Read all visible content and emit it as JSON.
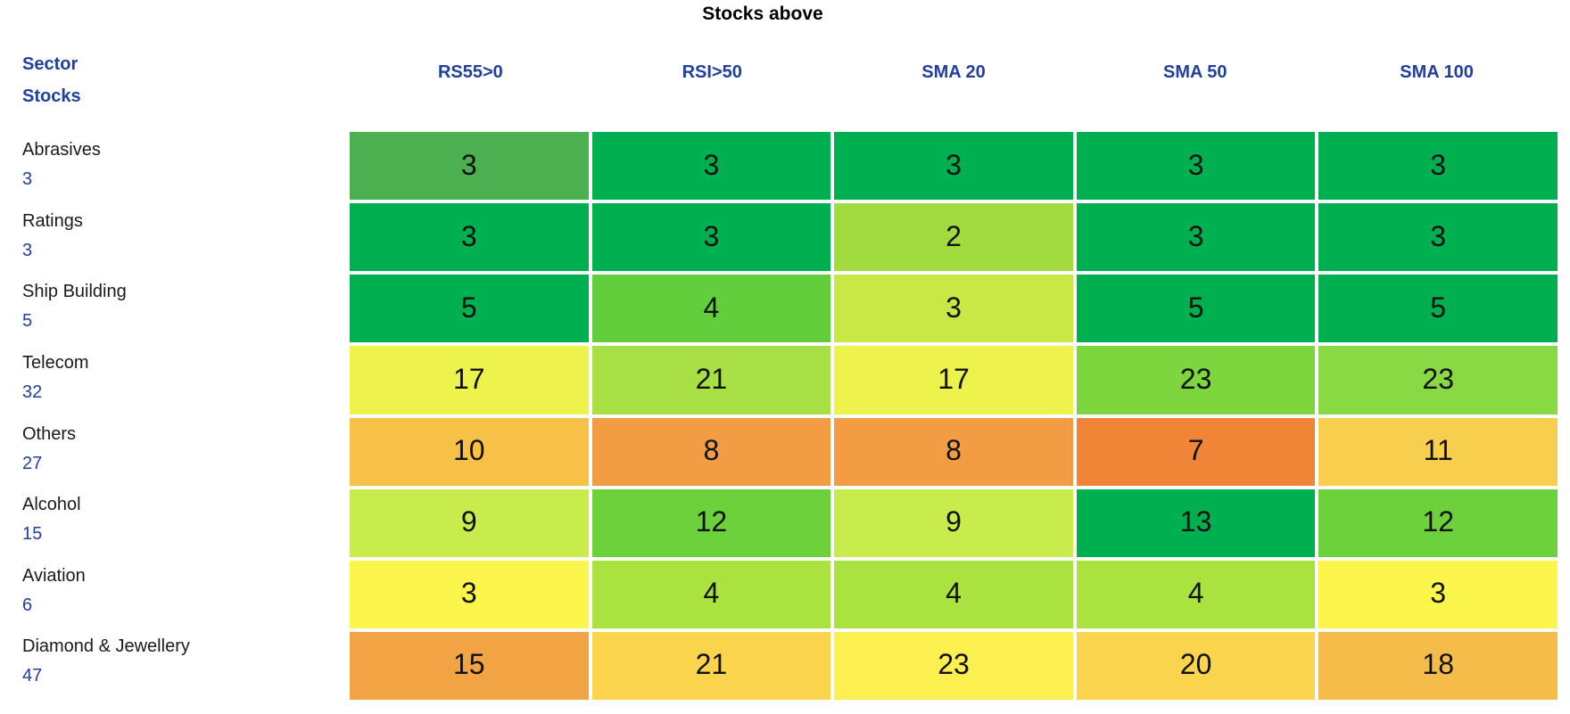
{
  "title": "Stocks above",
  "corner": {
    "line1": "Sector",
    "line2": "Stocks"
  },
  "columns": [
    "RS55>0",
    "RSI>50",
    "SMA 20",
    "SMA 50",
    "SMA 100"
  ],
  "rows": [
    {
      "sector": "Abrasives",
      "count": "3",
      "cells": [
        {
          "value": "3",
          "color": "#4CAF50"
        },
        {
          "value": "3",
          "color": "#00B050"
        },
        {
          "value": "3",
          "color": "#00B050"
        },
        {
          "value": "3",
          "color": "#00B050"
        },
        {
          "value": "3",
          "color": "#00B050"
        }
      ]
    },
    {
      "sector": "Ratings",
      "count": "3",
      "cells": [
        {
          "value": "3",
          "color": "#00B050"
        },
        {
          "value": "3",
          "color": "#00B050"
        },
        {
          "value": "2",
          "color": "#A2DB40"
        },
        {
          "value": "3",
          "color": "#00B050"
        },
        {
          "value": "3",
          "color": "#00B050"
        }
      ]
    },
    {
      "sector": "Ship Building",
      "count": "5",
      "cells": [
        {
          "value": "5",
          "color": "#00B050"
        },
        {
          "value": "4",
          "color": "#62CE3B"
        },
        {
          "value": "3",
          "color": "#C9E846"
        },
        {
          "value": "5",
          "color": "#00B050"
        },
        {
          "value": "5",
          "color": "#00B050"
        }
      ]
    },
    {
      "sector": "Telecom",
      "count": "32",
      "cells": [
        {
          "value": "17",
          "color": "#EEF24D"
        },
        {
          "value": "21",
          "color": "#A8DF45"
        },
        {
          "value": "17",
          "color": "#EEF24D"
        },
        {
          "value": "23",
          "color": "#7ED63E"
        },
        {
          "value": "23",
          "color": "#89D945"
        }
      ]
    },
    {
      "sector": "Others",
      "count": "27",
      "cells": [
        {
          "value": "10",
          "color": "#F6C146"
        },
        {
          "value": "8",
          "color": "#F29C44"
        },
        {
          "value": "8",
          "color": "#F29C44"
        },
        {
          "value": "7",
          "color": "#F08437"
        },
        {
          "value": "11",
          "color": "#F8CE4F"
        }
      ]
    },
    {
      "sector": "Alcohol",
      "count": "15",
      "cells": [
        {
          "value": "9",
          "color": "#C8EC4C"
        },
        {
          "value": "12",
          "color": "#6DD13C"
        },
        {
          "value": "9",
          "color": "#C8EC4C"
        },
        {
          "value": "13",
          "color": "#00B050"
        },
        {
          "value": "12",
          "color": "#6DD13C"
        }
      ]
    },
    {
      "sector": "Aviation",
      "count": "6",
      "cells": [
        {
          "value": "3",
          "color": "#FCF54C"
        },
        {
          "value": "4",
          "color": "#AAE23F"
        },
        {
          "value": "4",
          "color": "#AAE23F"
        },
        {
          "value": "4",
          "color": "#AAE23F"
        },
        {
          "value": "3",
          "color": "#FCF54C"
        }
      ]
    },
    {
      "sector": "Diamond & Jewellery",
      "count": "47",
      "cells": [
        {
          "value": "15",
          "color": "#F2A444"
        },
        {
          "value": "21",
          "color": "#FAD44D"
        },
        {
          "value": "23",
          "color": "#FBF04F"
        },
        {
          "value": "20",
          "color": "#FAD44D"
        },
        {
          "value": "18",
          "color": "#F5BC49"
        }
      ]
    }
  ],
  "colors": {
    "header_blue": "#203F9E",
    "cell_text": "#111111",
    "title_text": "#000000",
    "background": "#FFFFFF",
    "cell_border": "#FFFFFF"
  },
  "chart_data": {
    "type": "heatmap",
    "title": "Stocks above",
    "corner_labels": [
      "Sector",
      "Stocks"
    ],
    "columns": [
      "RS55>0",
      "RSI>50",
      "SMA 20",
      "SMA 50",
      "SMA 100"
    ],
    "rows": [
      {
        "sector": "Abrasives",
        "stocks": 3,
        "values": [
          3,
          3,
          3,
          3,
          3
        ]
      },
      {
        "sector": "Ratings",
        "stocks": 3,
        "values": [
          3,
          3,
          2,
          3,
          3
        ]
      },
      {
        "sector": "Ship Building",
        "stocks": 5,
        "values": [
          5,
          4,
          3,
          5,
          5
        ]
      },
      {
        "sector": "Telecom",
        "stocks": 32,
        "values": [
          17,
          21,
          17,
          23,
          23
        ]
      },
      {
        "sector": "Others",
        "stocks": 27,
        "values": [
          10,
          8,
          8,
          7,
          11
        ]
      },
      {
        "sector": "Alcohol",
        "stocks": 15,
        "values": [
          9,
          12,
          9,
          13,
          12
        ]
      },
      {
        "sector": "Aviation",
        "stocks": 6,
        "values": [
          3,
          4,
          4,
          4,
          3
        ]
      },
      {
        "sector": "Diamond & Jewellery",
        "stocks": 47,
        "values": [
          15,
          21,
          23,
          20,
          18
        ]
      }
    ],
    "color_scale": {
      "description": "green = high proportion of sector stocks above indicator, yellow = mid, orange = low",
      "green": "#00B050",
      "yellow": "#FCF54C",
      "orange": "#F08437"
    },
    "legend_position": "none",
    "grid": "white gaps between cells"
  }
}
